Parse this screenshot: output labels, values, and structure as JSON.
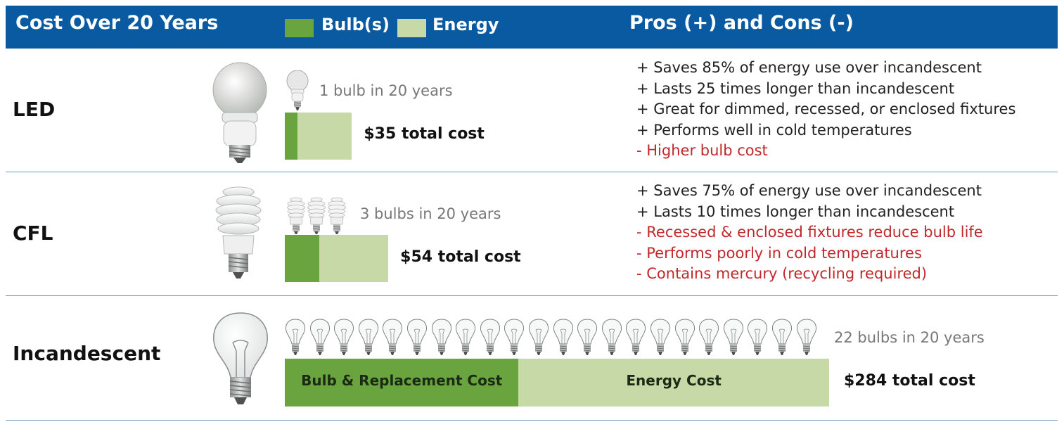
{
  "header": {
    "title": "Cost Over 20 Years",
    "legend_bulbs": "Bulb(s)",
    "legend_energy": "Energy",
    "pros_cons_title": "Pros (+) and Cons (-)"
  },
  "colors": {
    "header_bg": "#0a5aa2",
    "bulb_cost": "#6aa43f",
    "energy_cost": "#c6d9a6",
    "con_text": "#c0282b",
    "divider": "#6f97b8"
  },
  "chart_data": {
    "type": "bar",
    "orientation": "horizontal-stacked",
    "categories": [
      "LED",
      "CFL",
      "Incandescent"
    ],
    "series": [
      {
        "name": "Bulb(s)",
        "values": [
          6.5,
          18,
          122
        ]
      },
      {
        "name": "Energy",
        "values": [
          28.5,
          36,
          162
        ]
      }
    ],
    "totals": [
      35,
      54,
      284
    ],
    "total_labels": [
      "$35 total cost",
      "$54 total cost",
      "$284 total cost"
    ],
    "bulb_counts": [
      1,
      3,
      22
    ],
    "bulb_count_labels": [
      "1 bulb in 20 years",
      "3 bulbs in 20 years",
      "22 bulbs in 20 years"
    ],
    "segment_labels": {
      "bulb": "Bulb & Replacement Cost",
      "energy": "Energy Cost"
    }
  },
  "rows": [
    {
      "label": "LED",
      "count": "1 bulb in 20 years",
      "total": "$35 total cost",
      "pros": [
        "+ Saves 85% of energy use over incandescent",
        "+ Lasts 25 times longer than incandescent",
        "+ Great for dimmed, recessed, or enclosed fixtures",
        "+ Performs well in cold temperatures"
      ],
      "cons": [
        "-  Higher bulb cost"
      ]
    },
    {
      "label": "CFL",
      "count": "3 bulbs in 20 years",
      "total": "$54 total cost",
      "pros": [
        "+ Saves 75% of energy use over incandescent",
        "+ Lasts 10 times longer than incandescent"
      ],
      "cons": [
        "-  Recessed & enclosed fixtures reduce bulb life",
        "-  Performs poorly in cold temperatures",
        "-  Contains mercury (recycling required)"
      ]
    },
    {
      "label": "Incandescent",
      "count": "22 bulbs in 20 years",
      "total": "$284 total cost",
      "bar_labels": {
        "bulb": "Bulb & Replacement Cost",
        "energy": "Energy Cost"
      }
    }
  ]
}
